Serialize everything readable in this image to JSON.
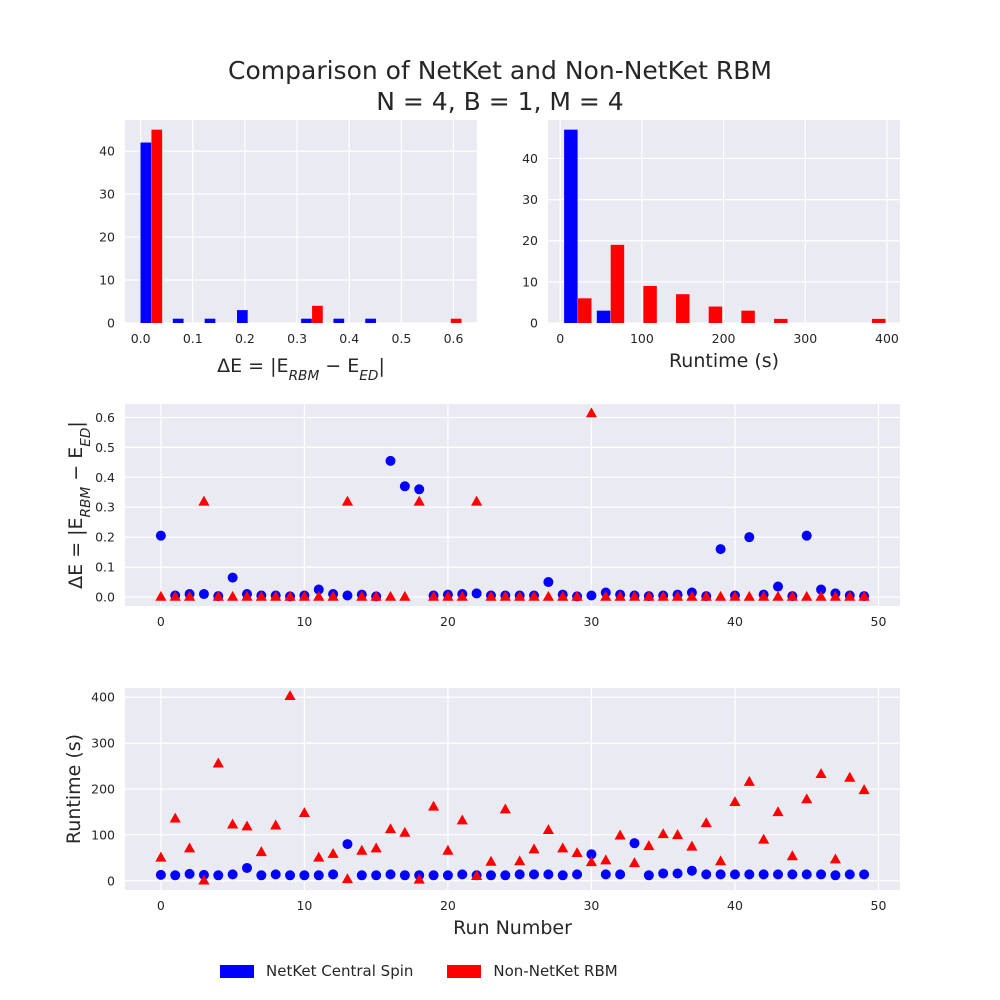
{
  "figure": {
    "title_line1": "Comparison of NetKet and Non-NetKet RBM",
    "title_line2": "N = 4, B = 1, M = 4"
  },
  "colors": {
    "netket": "#0000ff",
    "nonnetket": "#ff0000",
    "panel_bg": "#eaeaf2",
    "grid": "#ffffff",
    "text": "#262626"
  },
  "legend": [
    {
      "name": "NetKet Central Spin",
      "color": "#0000ff"
    },
    {
      "name": "Non-NetKet RBM",
      "color": "#ff0000"
    }
  ],
  "chart_data": [
    {
      "id": "hist-delta-e",
      "type": "bar",
      "xlabel": "ΔE = |E_RBM − E_ED|",
      "ylabel": "",
      "xlim": [
        -0.03,
        0.645
      ],
      "ylim": [
        0,
        47.25
      ],
      "xticks": [
        0.0,
        0.1,
        0.2,
        0.3,
        0.4,
        0.5,
        0.6
      ],
      "yticks": [
        0,
        10,
        20,
        30,
        40
      ],
      "bar_width": 0.0205,
      "series": [
        {
          "name": "NetKet Central Spin",
          "color": "#0000ff",
          "x": [
            0.01,
            0.072,
            0.133,
            0.195,
            0.318,
            0.38,
            0.441
          ],
          "values": [
            42,
            1,
            1,
            3,
            1,
            1,
            1
          ]
        },
        {
          "name": "Non-NetKet RBM",
          "color": "#ff0000",
          "x": [
            0.031,
            0.339,
            0.605
          ],
          "values": [
            45,
            4,
            1
          ]
        }
      ]
    },
    {
      "id": "hist-runtime",
      "type": "bar",
      "xlabel": "Runtime (s)",
      "ylabel": "",
      "xlim": [
        -15,
        416
      ],
      "ylim": [
        0,
        49.35
      ],
      "xticks": [
        0,
        100,
        200,
        300,
        400
      ],
      "yticks": [
        0,
        10,
        20,
        30,
        40
      ],
      "bar_width": 16.5,
      "series": [
        {
          "name": "NetKet Central Spin",
          "color": "#0000ff",
          "x": [
            13,
            53
          ],
          "values": [
            47,
            3
          ]
        },
        {
          "name": "Non-NetKet RBM",
          "color": "#ff0000",
          "x": [
            30,
            70,
            110,
            150,
            190,
            230,
            270,
            390
          ],
          "values": [
            6,
            19,
            9,
            7,
            4,
            3,
            1,
            1
          ]
        }
      ]
    },
    {
      "id": "scatter-delta-e",
      "type": "scatter",
      "xlabel": "",
      "ylabel": "ΔE = |E_RBM − E_ED|",
      "xlim": [
        -2.5,
        51.5
      ],
      "ylim": [
        -0.03,
        0.645
      ],
      "xticks": [
        0,
        10,
        20,
        30,
        40,
        50
      ],
      "yticks": [
        0.0,
        0.1,
        0.2,
        0.3,
        0.4,
        0.5,
        0.6
      ],
      "series": [
        {
          "name": "NetKet Central Spin",
          "color": "#0000ff",
          "marker": "circle",
          "x": [
            0,
            1,
            2,
            3,
            4,
            5,
            6,
            7,
            8,
            9,
            10,
            11,
            12,
            13,
            14,
            15,
            16,
            17,
            18,
            19,
            20,
            21,
            22,
            23,
            24,
            25,
            26,
            27,
            28,
            29,
            30,
            31,
            32,
            33,
            34,
            35,
            36,
            37,
            38,
            39,
            40,
            41,
            42,
            43,
            44,
            45,
            46,
            47,
            48,
            49
          ],
          "y": [
            0.205,
            0.005,
            0.01,
            0.01,
            0.003,
            0.065,
            0.01,
            0.005,
            0.005,
            0.002,
            0.005,
            0.025,
            0.01,
            0.005,
            0.008,
            0.002,
            0.455,
            0.37,
            0.36,
            0.005,
            0.008,
            0.01,
            0.012,
            0.005,
            0.005,
            0.005,
            0.005,
            0.05,
            0.008,
            0.002,
            0.005,
            0.015,
            0.008,
            0.005,
            0.003,
            0.005,
            0.008,
            0.015,
            0.003,
            0.16,
            0.005,
            0.2,
            0.008,
            0.035,
            0.003,
            0.205,
            0.025,
            0.012,
            0.005,
            0.003
          ]
        },
        {
          "name": "Non-NetKet RBM",
          "color": "#ff0000",
          "marker": "triangle",
          "x": [
            0,
            1,
            2,
            3,
            4,
            5,
            6,
            7,
            8,
            9,
            10,
            11,
            12,
            13,
            14,
            15,
            16,
            17,
            18,
            19,
            20,
            21,
            22,
            23,
            24,
            25,
            26,
            27,
            28,
            29,
            30,
            31,
            32,
            33,
            34,
            35,
            36,
            37,
            38,
            39,
            40,
            41,
            42,
            43,
            44,
            45,
            46,
            47,
            48,
            49
          ],
          "y": [
            0.0,
            0.0,
            0.0,
            0.318,
            0.0,
            0.0,
            0.0,
            0.0,
            0.0,
            0.0,
            0.0,
            0.0,
            0.0,
            0.318,
            0.0,
            0.0,
            0.0,
            0.0,
            0.318,
            0.0,
            0.0,
            0.0,
            0.318,
            0.0,
            0.0,
            0.0,
            0.0,
            0.0,
            0.0,
            0.0,
            0.613,
            0.0,
            0.0,
            0.0,
            0.0,
            0.0,
            0.0,
            0.0,
            0.0,
            0.0,
            0.0,
            0.0,
            0.0,
            0.0,
            0.0,
            0.0,
            0.0,
            0.0,
            0.0,
            0.0
          ]
        }
      ]
    },
    {
      "id": "scatter-runtime",
      "type": "scatter",
      "xlabel": "Run Number",
      "ylabel": "Runtime (s)",
      "xlim": [
        -2.5,
        51.5
      ],
      "ylim": [
        -20,
        420
      ],
      "xticks": [
        0,
        10,
        20,
        30,
        40,
        50
      ],
      "yticks": [
        0,
        100,
        200,
        300,
        400
      ],
      "series": [
        {
          "name": "NetKet Central Spin",
          "color": "#0000ff",
          "marker": "circle",
          "x": [
            0,
            1,
            2,
            3,
            4,
            5,
            6,
            7,
            8,
            9,
            10,
            11,
            12,
            13,
            14,
            15,
            16,
            17,
            18,
            19,
            20,
            21,
            22,
            23,
            24,
            25,
            26,
            27,
            28,
            29,
            30,
            31,
            32,
            33,
            34,
            35,
            36,
            37,
            38,
            39,
            40,
            41,
            42,
            43,
            44,
            45,
            46,
            47,
            48,
            49
          ],
          "y": [
            13,
            12,
            15,
            13,
            12,
            14,
            28,
            12,
            14,
            12,
            12,
            12,
            14,
            80,
            12,
            12,
            14,
            12,
            12,
            12,
            12,
            14,
            12,
            12,
            12,
            14,
            14,
            14,
            12,
            14,
            58,
            14,
            14,
            82,
            12,
            16,
            16,
            22,
            14,
            14,
            14,
            14,
            14,
            14,
            14,
            14,
            14,
            12,
            14,
            14
          ]
        },
        {
          "name": "Non-NetKet RBM",
          "color": "#ff0000",
          "marker": "triangle",
          "x": [
            0,
            1,
            2,
            3,
            4,
            5,
            6,
            7,
            8,
            9,
            10,
            11,
            12,
            13,
            14,
            15,
            16,
            17,
            18,
            19,
            20,
            21,
            22,
            23,
            24,
            25,
            26,
            27,
            28,
            29,
            30,
            31,
            32,
            33,
            34,
            35,
            36,
            37,
            38,
            39,
            40,
            41,
            42,
            43,
            44,
            45,
            46,
            47,
            48,
            49
          ],
          "y": [
            50,
            135,
            70,
            0,
            255,
            122,
            118,
            62,
            120,
            402,
            147,
            50,
            58,
            3,
            65,
            70,
            112,
            104,
            2,
            161,
            65,
            131,
            10,
            41,
            155,
            42,
            68,
            110,
            70,
            60,
            40,
            44,
            98,
            38,
            75,
            101,
            99,
            74,
            125,
            42,
            171,
            215,
            89,
            149,
            53,
            177,
            232,
            46,
            224,
            197
          ]
        }
      ]
    }
  ]
}
